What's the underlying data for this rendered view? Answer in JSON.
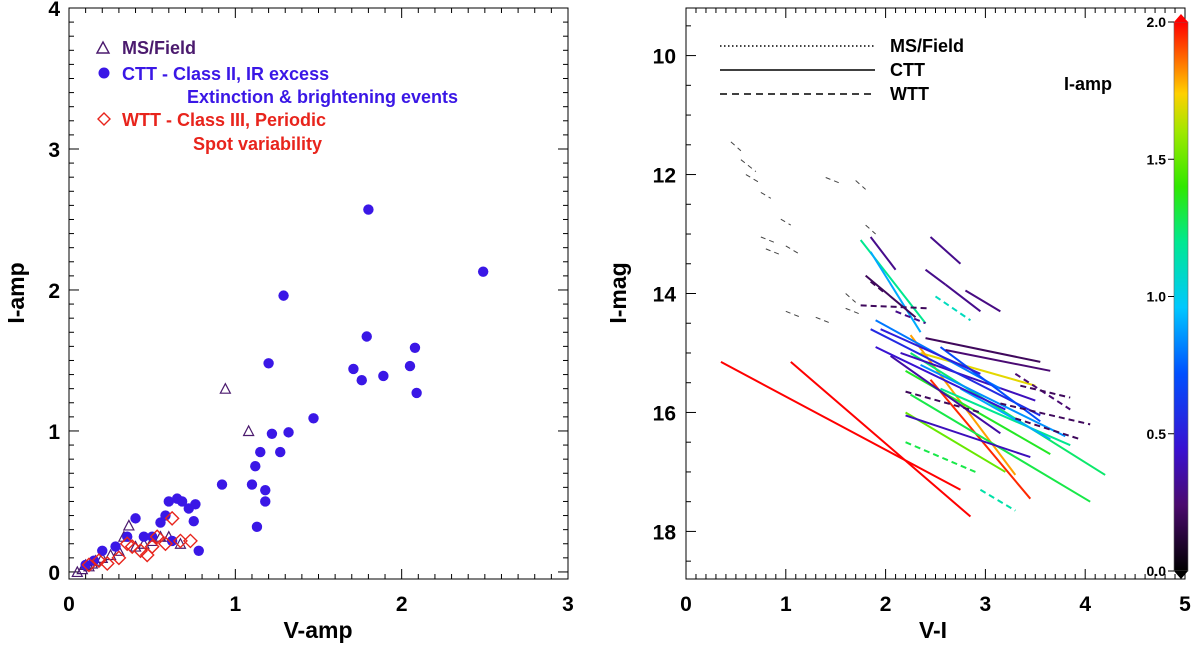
{
  "chart_data": [
    {
      "type": "scatter",
      "xlabel": "V-amp",
      "ylabel": "I-amp",
      "xlim": [
        0,
        3
      ],
      "ylim": [
        -0.05,
        4
      ],
      "xticks": [
        "0",
        "1",
        "2",
        "3"
      ],
      "yticks": [
        "0",
        "1",
        "2",
        "3",
        "4"
      ],
      "xtick_values": [
        0,
        1,
        2,
        3
      ],
      "ytick_values": [
        0,
        1,
        2,
        3,
        4
      ],
      "legend": [
        {
          "symbol": "triangle",
          "color": "#4b1a6e",
          "label": "MS/Field"
        },
        {
          "symbol": "dot",
          "color": "#3a17e6",
          "label": "CTT - Class II, IR excess"
        },
        {
          "symbol": "none",
          "color": "#3a17e6",
          "label": "Extinction & brightening events"
        },
        {
          "symbol": "diamond",
          "color": "#e8241c",
          "label": "WTT - Class III, Periodic"
        },
        {
          "symbol": "none",
          "color": "#e8241c",
          "label": "Spot variability"
        }
      ],
      "series": [
        {
          "name": "MS/Field",
          "marker": "triangle",
          "color": "#4b1a6e",
          "points": [
            [
              0.05,
              0.0
            ],
            [
              0.08,
              0.02
            ],
            [
              0.1,
              0.05
            ],
            [
              0.12,
              0.04
            ],
            [
              0.14,
              0.06
            ],
            [
              0.16,
              0.08
            ],
            [
              0.2,
              0.1
            ],
            [
              0.25,
              0.12
            ],
            [
              0.3,
              0.15
            ],
            [
              0.33,
              0.25
            ],
            [
              0.36,
              0.33
            ],
            [
              0.4,
              0.18
            ],
            [
              0.45,
              0.2
            ],
            [
              0.5,
              0.22
            ],
            [
              0.55,
              0.25
            ],
            [
              0.6,
              0.25
            ],
            [
              0.67,
              0.2
            ],
            [
              0.94,
              1.3
            ],
            [
              1.08,
              1.0
            ]
          ]
        },
        {
          "name": "CTT - Class II, IR excess",
          "marker": "dot",
          "color": "#3a17e6",
          "points": [
            [
              0.1,
              0.05
            ],
            [
              0.15,
              0.08
            ],
            [
              0.2,
              0.15
            ],
            [
              0.28,
              0.18
            ],
            [
              0.35,
              0.25
            ],
            [
              0.4,
              0.38
            ],
            [
              0.45,
              0.25
            ],
            [
              0.5,
              0.25
            ],
            [
              0.55,
              0.35
            ],
            [
              0.58,
              0.4
            ],
            [
              0.6,
              0.5
            ],
            [
              0.62,
              0.22
            ],
            [
              0.65,
              0.52
            ],
            [
              0.68,
              0.5
            ],
            [
              0.72,
              0.45
            ],
            [
              0.75,
              0.36
            ],
            [
              0.76,
              0.48
            ],
            [
              0.78,
              0.15
            ],
            [
              0.92,
              0.62
            ],
            [
              1.1,
              0.62
            ],
            [
              1.12,
              0.75
            ],
            [
              1.13,
              0.32
            ],
            [
              1.15,
              0.85
            ],
            [
              1.18,
              0.5
            ],
            [
              1.18,
              0.58
            ],
            [
              1.2,
              1.48
            ],
            [
              1.22,
              0.98
            ],
            [
              1.27,
              0.85
            ],
            [
              1.29,
              1.96
            ],
            [
              1.32,
              0.99
            ],
            [
              1.47,
              1.09
            ],
            [
              1.71,
              1.44
            ],
            [
              1.76,
              1.36
            ],
            [
              1.79,
              1.67
            ],
            [
              1.8,
              2.57
            ],
            [
              1.89,
              1.39
            ],
            [
              2.05,
              1.46
            ],
            [
              2.08,
              1.59
            ],
            [
              2.09,
              1.27
            ],
            [
              2.49,
              2.13
            ]
          ]
        },
        {
          "name": "WTT - Class III, Periodic",
          "marker": "diamond",
          "color": "#e8241c",
          "points": [
            [
              0.12,
              0.05
            ],
            [
              0.18,
              0.08
            ],
            [
              0.23,
              0.06
            ],
            [
              0.3,
              0.1
            ],
            [
              0.35,
              0.2
            ],
            [
              0.38,
              0.18
            ],
            [
              0.43,
              0.15
            ],
            [
              0.47,
              0.12
            ],
            [
              0.5,
              0.18
            ],
            [
              0.53,
              0.25
            ],
            [
              0.58,
              0.2
            ],
            [
              0.62,
              0.38
            ],
            [
              0.67,
              0.22
            ],
            [
              0.73,
              0.22
            ]
          ]
        }
      ]
    },
    {
      "type": "line",
      "xlabel": "V-I",
      "ylabel": "I-mag",
      "xlim": [
        0,
        5
      ],
      "ylim": [
        18.8,
        9.2
      ],
      "y_inverted": true,
      "xticks": [
        "0",
        "1",
        "2",
        "3",
        "4",
        "5"
      ],
      "yticks": [
        "10",
        "12",
        "14",
        "16",
        "18"
      ],
      "xtick_values": [
        0,
        1,
        2,
        3,
        4,
        5
      ],
      "ytick_values": [
        10,
        12,
        14,
        16,
        18
      ],
      "legend": [
        {
          "style": "dotted",
          "label": "MS/Field"
        },
        {
          "style": "solid",
          "label": "CTT"
        },
        {
          "style": "dashed",
          "label": "WTT"
        }
      ],
      "colorbar": {
        "label": "I-amp",
        "range": [
          0.0,
          2.0
        ],
        "ticks": [
          "0.0",
          "0.5",
          "1.0",
          "1.5",
          "2.0"
        ],
        "tick_values": [
          0.0,
          0.5,
          1.0,
          1.5,
          2.0
        ]
      },
      "segments": [
        {
          "x1": 0.35,
          "y1": 15.15,
          "x2": 2.75,
          "y2": 17.3,
          "amp": 2.0,
          "style": "solid"
        },
        {
          "x1": 1.05,
          "y1": 15.15,
          "x2": 2.85,
          "y2": 17.75,
          "amp": 2.0,
          "style": "solid"
        },
        {
          "x1": 2.45,
          "y1": 15.45,
          "x2": 3.45,
          "y2": 17.45,
          "amp": 1.95,
          "style": "solid"
        },
        {
          "x1": 2.35,
          "y1": 15.0,
          "x2": 3.5,
          "y2": 15.55,
          "amp": 1.7,
          "style": "solid"
        },
        {
          "x1": 2.25,
          "y1": 14.7,
          "x2": 3.3,
          "y2": 17.05,
          "amp": 1.8,
          "style": "solid"
        },
        {
          "x1": 1.75,
          "y1": 13.1,
          "x2": 2.4,
          "y2": 14.5,
          "amp": 1.2,
          "style": "solid"
        },
        {
          "x1": 1.85,
          "y1": 13.3,
          "x2": 2.35,
          "y2": 14.65,
          "amp": 0.9,
          "style": "solid"
        },
        {
          "x1": 2.25,
          "y1": 15.0,
          "x2": 4.2,
          "y2": 17.05,
          "amp": 1.25,
          "style": "solid"
        },
        {
          "x1": 2.2,
          "y1": 15.3,
          "x2": 3.65,
          "y2": 16.7,
          "amp": 1.35,
          "style": "solid"
        },
        {
          "x1": 2.25,
          "y1": 15.7,
          "x2": 4.05,
          "y2": 17.5,
          "amp": 1.3,
          "style": "solid"
        },
        {
          "x1": 2.2,
          "y1": 16.0,
          "x2": 3.2,
          "y2": 17.0,
          "amp": 1.5,
          "style": "solid"
        },
        {
          "x1": 2.55,
          "y1": 15.6,
          "x2": 3.85,
          "y2": 16.55,
          "amp": 1.2,
          "style": "solid"
        },
        {
          "x1": 2.35,
          "y1": 15.2,
          "x2": 3.8,
          "y2": 16.4,
          "amp": 0.85,
          "style": "solid"
        },
        {
          "x1": 2.15,
          "y1": 15.0,
          "x2": 3.5,
          "y2": 15.8,
          "amp": 0.4,
          "style": "solid"
        },
        {
          "x1": 1.9,
          "y1": 14.45,
          "x2": 3.15,
          "y2": 15.6,
          "amp": 0.8,
          "style": "solid"
        },
        {
          "x1": 1.85,
          "y1": 14.6,
          "x2": 3.55,
          "y2": 16.05,
          "amp": 0.55,
          "style": "solid"
        },
        {
          "x1": 2.2,
          "y1": 16.05,
          "x2": 3.45,
          "y2": 16.75,
          "amp": 0.4,
          "style": "solid"
        },
        {
          "x1": 2.05,
          "y1": 15.05,
          "x2": 3.15,
          "y2": 16.35,
          "amp": 0.35,
          "style": "solid"
        },
        {
          "x1": 2.75,
          "y1": 15.6,
          "x2": 3.65,
          "y2": 16.45,
          "amp": 0.9,
          "style": "solid"
        },
        {
          "x1": 1.9,
          "y1": 14.9,
          "x2": 3.2,
          "y2": 15.95,
          "amp": 0.45,
          "style": "solid"
        },
        {
          "x1": 2.55,
          "y1": 14.9,
          "x2": 3.55,
          "y2": 16.15,
          "amp": 0.7,
          "style": "solid"
        },
        {
          "x1": 1.95,
          "y1": 14.6,
          "x2": 2.95,
          "y2": 15.35,
          "amp": 0.5,
          "style": "solid"
        },
        {
          "x1": 2.4,
          "y1": 14.75,
          "x2": 3.55,
          "y2": 15.15,
          "amp": 0.2,
          "style": "solid"
        },
        {
          "x1": 2.6,
          "y1": 14.95,
          "x2": 3.65,
          "y2": 15.3,
          "amp": 0.25,
          "style": "solid"
        },
        {
          "x1": 2.45,
          "y1": 13.05,
          "x2": 2.75,
          "y2": 13.5,
          "amp": 0.3,
          "style": "solid"
        },
        {
          "x1": 1.85,
          "y1": 13.05,
          "x2": 2.1,
          "y2": 13.6,
          "amp": 0.3,
          "style": "solid"
        },
        {
          "x1": 2.4,
          "y1": 13.6,
          "x2": 2.6,
          "y2": 13.85,
          "amp": 0.3,
          "style": "solid"
        },
        {
          "x1": 2.6,
          "y1": 13.85,
          "x2": 2.95,
          "y2": 14.3,
          "amp": 0.3,
          "style": "solid"
        },
        {
          "x1": 2.8,
          "y1": 13.95,
          "x2": 3.15,
          "y2": 14.3,
          "amp": 0.28,
          "style": "solid"
        },
        {
          "x1": 1.8,
          "y1": 13.7,
          "x2": 2.3,
          "y2": 14.4,
          "amp": 0.2,
          "style": "solid"
        },
        {
          "x1": 3.3,
          "y1": 15.35,
          "x2": 3.85,
          "y2": 15.95,
          "amp": 0.25,
          "style": "dashed"
        },
        {
          "x1": 3.35,
          "y1": 15.55,
          "x2": 3.85,
          "y2": 15.75,
          "amp": 0.2,
          "style": "dashed"
        },
        {
          "x1": 3.15,
          "y1": 15.85,
          "x2": 4.05,
          "y2": 16.2,
          "amp": 0.2,
          "style": "dashed"
        },
        {
          "x1": 3.3,
          "y1": 16.1,
          "x2": 3.95,
          "y2": 16.45,
          "amp": 0.2,
          "style": "dashed"
        },
        {
          "x1": 1.75,
          "y1": 14.2,
          "x2": 2.45,
          "y2": 14.25,
          "amp": 0.2,
          "style": "dashed"
        },
        {
          "x1": 2.2,
          "y1": 15.65,
          "x2": 2.95,
          "y2": 16.0,
          "amp": 0.2,
          "style": "dashed"
        },
        {
          "x1": 2.1,
          "y1": 14.3,
          "x2": 2.4,
          "y2": 14.5,
          "amp": 0.3,
          "style": "dashed"
        },
        {
          "x1": 1.85,
          "y1": 13.8,
          "x2": 2.0,
          "y2": 14.0,
          "amp": 0.2,
          "style": "dashed"
        },
        {
          "x1": 2.2,
          "y1": 16.5,
          "x2": 2.9,
          "y2": 17.0,
          "amp": 1.3,
          "style": "dashed"
        },
        {
          "x1": 2.95,
          "y1": 17.3,
          "x2": 3.3,
          "y2": 17.65,
          "amp": 1.15,
          "style": "dashed"
        },
        {
          "x1": 2.5,
          "y1": 14.05,
          "x2": 2.85,
          "y2": 14.45,
          "amp": 1.1,
          "style": "dashed"
        },
        {
          "x1": 0.45,
          "y1": 11.45,
          "x2": 0.55,
          "y2": 11.6,
          "amp": 0.05,
          "style": "dashed"
        },
        {
          "x1": 0.55,
          "y1": 11.75,
          "x2": 0.7,
          "y2": 11.95,
          "amp": 0.05,
          "style": "dashed"
        },
        {
          "x1": 0.6,
          "y1": 12.0,
          "x2": 0.75,
          "y2": 12.15,
          "amp": 0.05,
          "style": "dashed"
        },
        {
          "x1": 0.75,
          "y1": 12.3,
          "x2": 0.85,
          "y2": 12.4,
          "amp": 0.05,
          "style": "dashed"
        },
        {
          "x1": 0.95,
          "y1": 12.75,
          "x2": 1.05,
          "y2": 12.85,
          "amp": 0.05,
          "style": "dashed"
        },
        {
          "x1": 0.75,
          "y1": 13.05,
          "x2": 0.9,
          "y2": 13.15,
          "amp": 0.05,
          "style": "dashed"
        },
        {
          "x1": 0.8,
          "y1": 13.25,
          "x2": 0.95,
          "y2": 13.35,
          "amp": 0.05,
          "style": "dashed"
        },
        {
          "x1": 1.0,
          "y1": 13.2,
          "x2": 1.15,
          "y2": 13.35,
          "amp": 0.05,
          "style": "dashed"
        },
        {
          "x1": 1.4,
          "y1": 12.05,
          "x2": 1.55,
          "y2": 12.15,
          "amp": 0.05,
          "style": "dashed"
        },
        {
          "x1": 1.7,
          "y1": 12.1,
          "x2": 1.8,
          "y2": 12.25,
          "amp": 0.05,
          "style": "dashed"
        },
        {
          "x1": 1.0,
          "y1": 14.3,
          "x2": 1.15,
          "y2": 14.4,
          "amp": 0.05,
          "style": "dashed"
        },
        {
          "x1": 1.3,
          "y1": 14.4,
          "x2": 1.45,
          "y2": 14.5,
          "amp": 0.05,
          "style": "dashed"
        },
        {
          "x1": 1.6,
          "y1": 14.0,
          "x2": 1.7,
          "y2": 14.15,
          "amp": 0.05,
          "style": "dashed"
        },
        {
          "x1": 1.6,
          "y1": 14.25,
          "x2": 1.75,
          "y2": 14.35,
          "amp": 0.05,
          "style": "dashed"
        },
        {
          "x1": 1.8,
          "y1": 12.85,
          "x2": 1.9,
          "y2": 13.0,
          "amp": 0.05,
          "style": "dashed"
        }
      ]
    }
  ]
}
